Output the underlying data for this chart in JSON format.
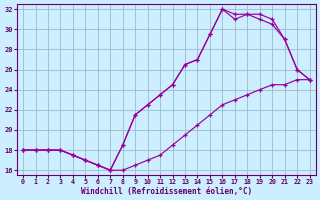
{
  "bg_color": "#cceeff",
  "grid_color": "#99bbcc",
  "line_color": "#990099",
  "xlim_min": -0.5,
  "xlim_max": 23.5,
  "ylim_min": 15.5,
  "ylim_max": 32.5,
  "xticks": [
    0,
    1,
    2,
    3,
    4,
    5,
    6,
    7,
    8,
    9,
    10,
    11,
    12,
    13,
    14,
    15,
    16,
    17,
    18,
    19,
    20,
    21,
    22,
    23
  ],
  "yticks": [
    16,
    18,
    20,
    22,
    24,
    26,
    28,
    30,
    32
  ],
  "xlabel": "Windchill (Refroidissement éolien,°C)",
  "series": [
    [
      18,
      18,
      18,
      18,
      17.5,
      17,
      16.5,
      16,
      16,
      16.5,
      17,
      17.5,
      18.5,
      19.5,
      20.5,
      21.5,
      22.5,
      23,
      23.5,
      24,
      24.5,
      24.5,
      25,
      25
    ],
    [
      18,
      18,
      18,
      18,
      17.5,
      17,
      16.5,
      16,
      18.5,
      21.5,
      22.5,
      23.5,
      24.5,
      26.5,
      27,
      29.5,
      32,
      31.5,
      31.5,
      31,
      30.5,
      29,
      26,
      25
    ],
    [
      18,
      18,
      18,
      18,
      17.5,
      17,
      16.5,
      16,
      18.5,
      21.5,
      22.5,
      23.5,
      24.5,
      26.5,
      27,
      29.5,
      32,
      31,
      31.5,
      31.5,
      31,
      29,
      26,
      25
    ]
  ]
}
